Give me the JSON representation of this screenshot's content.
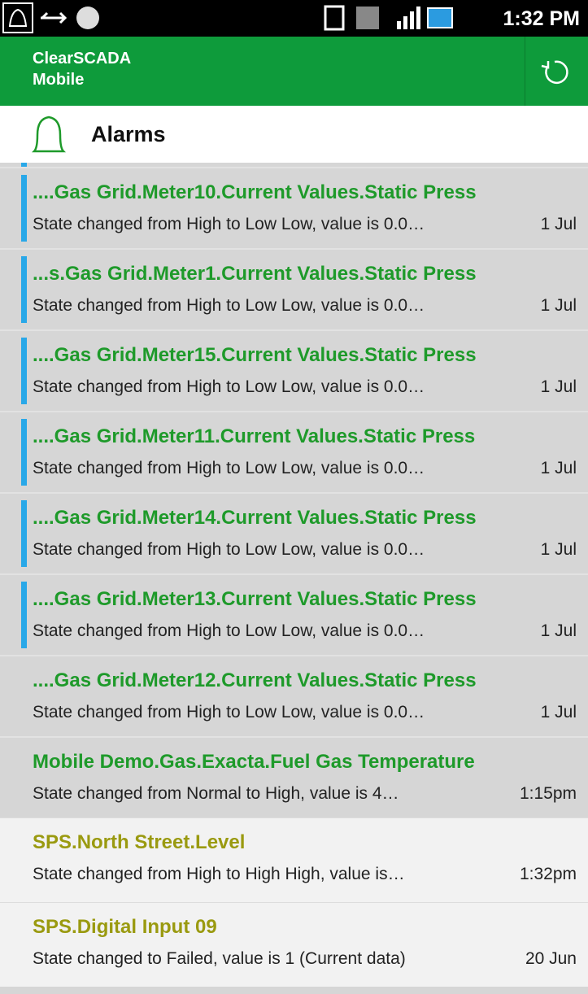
{
  "status_bar": {
    "time": "1:32 PM"
  },
  "app_bar": {
    "title_line1": "ClearSCADA",
    "title_line2": "Mobile"
  },
  "header": {
    "title": "Alarms"
  },
  "alarms": [
    {
      "title": "....Gas Grid.Meter10.Current Values.Static Press",
      "description": "State changed from High to Low Low, value is 0.0…",
      "time": "1 Jul"
    },
    {
      "title": "...s.Gas Grid.Meter1.Current Values.Static Press",
      "description": "State changed from High to Low Low, value is 0.0…",
      "time": "1 Jul"
    },
    {
      "title": "....Gas Grid.Meter15.Current Values.Static Press",
      "description": "State changed from High to Low Low, value is 0.0…",
      "time": "1 Jul"
    },
    {
      "title": "....Gas Grid.Meter11.Current Values.Static Press",
      "description": "State changed from High to Low Low, value is 0.0…",
      "time": "1 Jul"
    },
    {
      "title": "....Gas Grid.Meter14.Current Values.Static Press",
      "description": "State changed from High to Low Low, value is 0.0…",
      "time": "1 Jul"
    },
    {
      "title": "....Gas Grid.Meter13.Current Values.Static Press",
      "description": "State changed from High to Low Low, value is 0.0…",
      "time": "1 Jul"
    },
    {
      "title": "....Gas Grid.Meter12.Current Values.Static Press",
      "description": "State changed from High to Low Low, value is 0.0…",
      "time": "1 Jul"
    },
    {
      "title": "Mobile Demo.Gas.Exacta.Fuel Gas Temperature",
      "description": "State changed from Normal to High, value is 4…",
      "time": "1:15pm"
    },
    {
      "title": "SPS.North Street.Level",
      "description": "State changed from High to High High, value is…",
      "time": "1:32pm"
    },
    {
      "title": "SPS.Digital Input 09",
      "description": "State changed to Failed, value is 1 (Current data)",
      "time": "20 Jun"
    }
  ]
}
